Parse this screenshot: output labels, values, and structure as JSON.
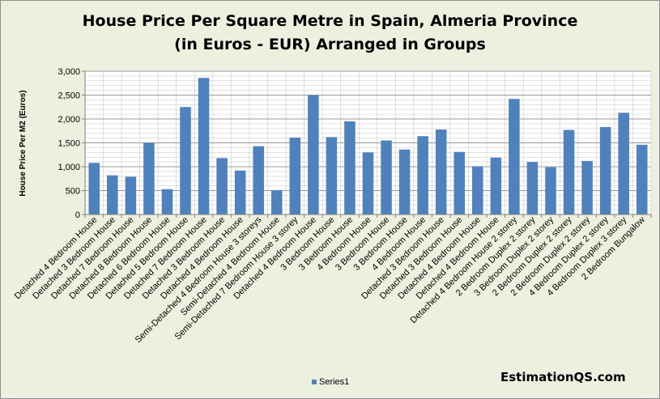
{
  "chart_data": {
    "type": "bar",
    "title_line1": "House Price Per Square Metre in Spain, Almeria Province",
    "title_line2": "(in Euros - EUR) Arranged in Groups",
    "xlabel": "",
    "ylabel": "House Price Per M2 (Euros)",
    "ylim": [
      0,
      3000
    ],
    "yticks": [
      "0",
      "500",
      "1,000",
      "1,500",
      "2,000",
      "2,500",
      "3,000"
    ],
    "grid": true,
    "legend_position": "bottom",
    "bar_color": "#4f81bd",
    "categories": [
      "Detached 4 Bedroom House",
      "Detached 3 Bedroom House",
      "Detached 7 Bedroom House",
      "Detached 8 Bedroom House",
      "Detached 6 Bedroom House",
      "Detached 5 Bedroom House",
      "Detached 7 Bedroom House",
      "Detached 3 Bedroom House",
      "Detached 4 Bedroom House",
      "Semi-Detached 4 Bedroom House 3 storeys",
      "Semi-Detached 4 Bedroom House",
      "Semi-Detached 7 Bedroom House 3 storey",
      "Detached 4 Bedroom House",
      "3 Bedroom House",
      "3 Bedroom House",
      "4 Bedroom House",
      "3 Bedroom House",
      "3 Bedroom House",
      "4 Bedroom House",
      "Detached 3 Bedroom House",
      "Detached 3 Bedroom House",
      "Detached 4 Bedroom House",
      "Detached 4 Bedroom House",
      "Detached 4 Bedroom House 2 storey",
      "2 Bedroom Duplex 2 storey",
      "3 Bedroom Duplex 2 storey",
      "2 Bedroom Duplex 2 storey",
      "2 Bedroom Duplex 2 storey",
      "4 Bedroom Duplex 2 storey",
      "4 Bedroom Duplex 3 storey",
      "2 Bedroom Bungalow"
    ],
    "series": [
      {
        "name": "Series1",
        "values": [
          1080,
          820,
          790,
          1500,
          530,
          2250,
          2860,
          1180,
          920,
          1430,
          510,
          1610,
          2500,
          1620,
          1950,
          1300,
          1550,
          1360,
          1640,
          1780,
          1310,
          1010,
          1190,
          2420,
          1100,
          990,
          1770,
          1120,
          1830,
          2130,
          1460
        ]
      }
    ]
  },
  "legend": {
    "label": "Series1"
  },
  "watermark": "EstimationQS.com"
}
